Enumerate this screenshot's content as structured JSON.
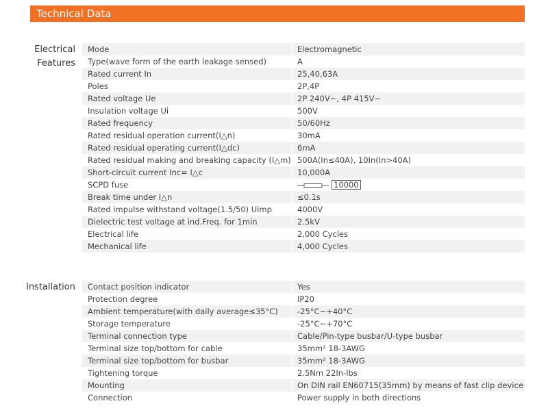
{
  "header": {
    "title": "Technical Data"
  },
  "sections": [
    {
      "label": "Electrical\nFeatures",
      "rows": [
        [
          "Mode",
          "Electromagnetic"
        ],
        [
          "Type(wave form of the earth leakage sensed)",
          "A"
        ],
        [
          "Rated current In",
          "25,40,63A"
        ],
        [
          "Poles",
          "2P,4P"
        ],
        [
          "Rated voltage Ue",
          "2P 240V~, 4P 415V~"
        ],
        [
          "Insulation voltage Ui",
          "500V"
        ],
        [
          "Rated frequency",
          "50/60Hz"
        ],
        [
          "Rated residual operation current(I△n)",
          "30mA"
        ],
        [
          "Rated residual operating current(I△dc)",
          "6mA"
        ],
        [
          "Rated residual making and breaking capacity (I△m)",
          "500A(In≤40A), 10In(In>40A)"
        ],
        [
          "Short-circuit current Inc= I△c",
          "10,000A"
        ],
        [
          "SCPD fuse",
          "10000"
        ],
        [
          "Break time under I△n",
          "≤0.1s"
        ],
        [
          "Rated impulse withstand voltage(1.5/50) Uimp",
          "4000V"
        ],
        [
          "Dielectric test voltage at ind.Freq. for 1min",
          "2.5kV"
        ],
        [
          "Electrical life",
          "2,000 Cycles"
        ],
        [
          "Mechanical life",
          "4,000 Cycles"
        ]
      ]
    },
    {
      "label": "Installation",
      "rows": [
        [
          "Contact position indicator",
          "Yes"
        ],
        [
          "Protection degree",
          "IP20"
        ],
        [
          "Ambient temperature(with daily average≤35°C)",
          "-25°C~+40°C"
        ],
        [
          "Storage temperature",
          "-25°C~+70°C"
        ],
        [
          "Terminal connection type",
          "Cable/Pin-type busbar/U-type busbar"
        ],
        [
          "Terminal size top/bottom for cable",
          "35mm² 18-3AWG"
        ],
        [
          "Terminal size top/bottom for busbar",
          "35mm² 18-3AWG"
        ],
        [
          "Tightening torque",
          "2.5Nm  22In-lbs"
        ],
        [
          "Mounting",
          "On DIN rail EN60715(35mm) by means of fast clip device"
        ],
        [
          "Connection",
          "Power supply in both directions"
        ]
      ]
    }
  ]
}
